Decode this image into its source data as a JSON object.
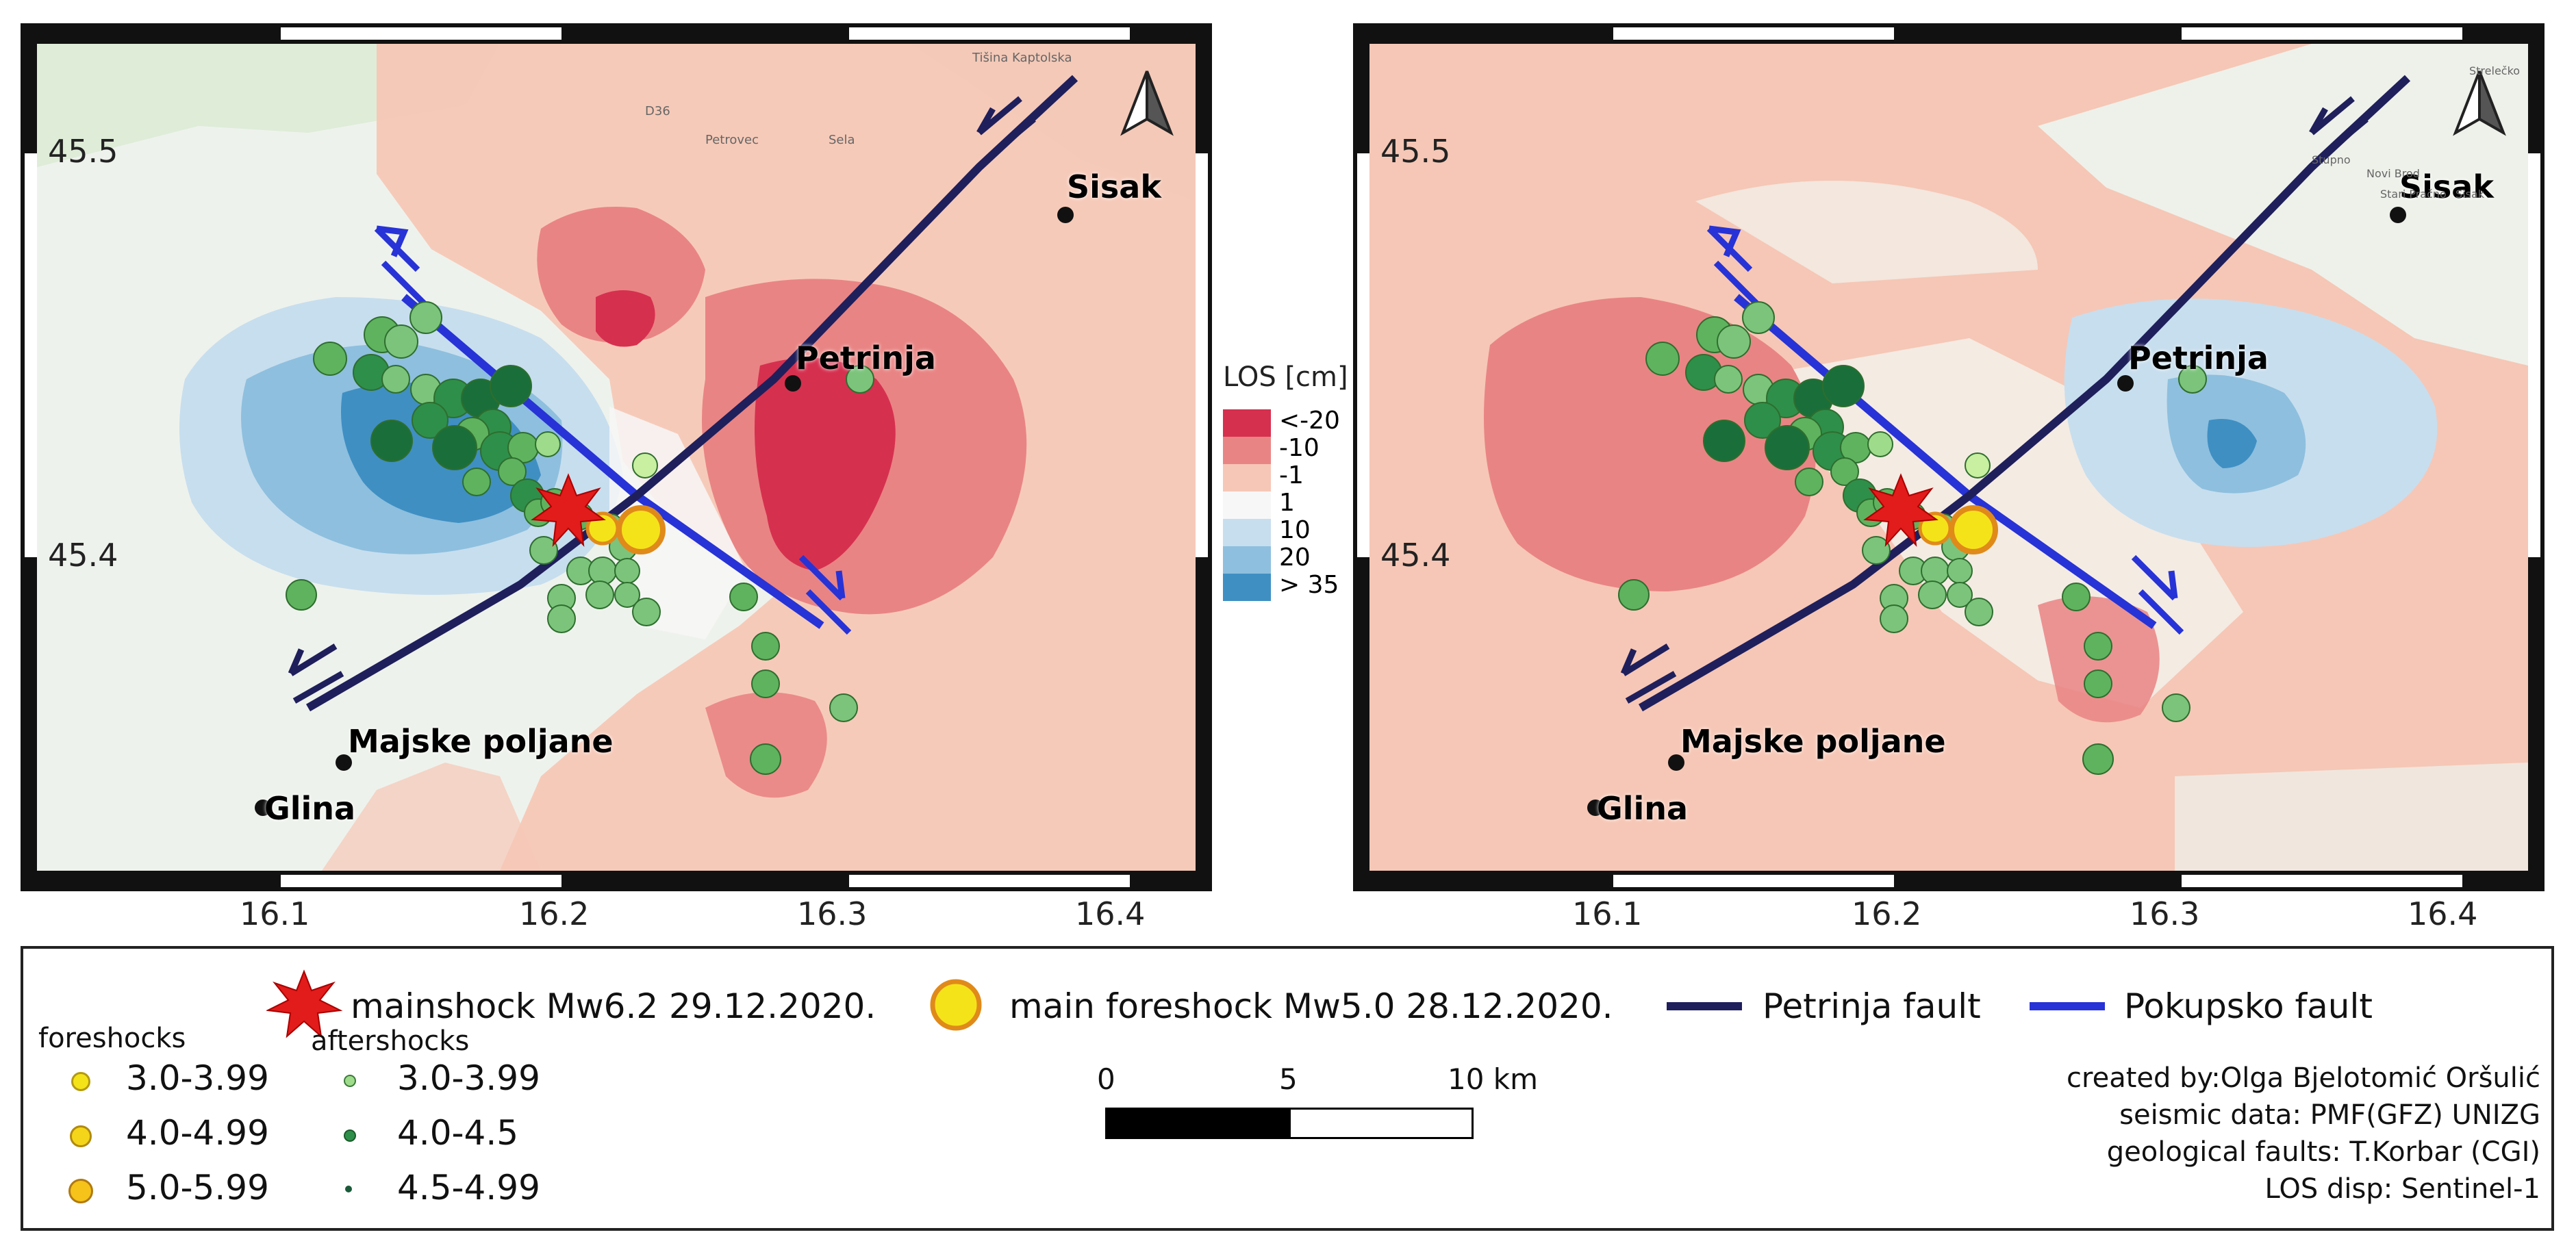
{
  "maps": [
    {
      "panel": "left",
      "lat_labels": [
        "45.5",
        "45.4"
      ],
      "lon_labels": [
        "16.1",
        "16.2",
        "16.3",
        "16.4"
      ],
      "places": [
        {
          "name": "Sisak"
        },
        {
          "name": "Petrinja"
        },
        {
          "name": "Majske poljane"
        },
        {
          "name": "Glina"
        }
      ],
      "basemap_labels": [
        "D36",
        "Petrovec",
        "Sela",
        "Tišina Kaptolska"
      ]
    },
    {
      "panel": "right",
      "lat_labels": [
        "45.5",
        "45.4"
      ],
      "lon_labels": [
        "16.1",
        "16.2",
        "16.3",
        "16.4"
      ],
      "places": [
        {
          "name": "Sisak"
        },
        {
          "name": "Petrinja"
        },
        {
          "name": "Majske poljane"
        },
        {
          "name": "Glina"
        }
      ],
      "basemap_labels": [
        "Strelečko",
        "Stupno",
        "Novi Brod",
        "Stari Pračno",
        "Sisak"
      ]
    }
  ],
  "los_legend": {
    "title": "LOS [cm]",
    "classes": [
      {
        "label": "<-20",
        "color": "#d6304f"
      },
      {
        "label": "-10",
        "color": "#e98484"
      },
      {
        "label": "-1",
        "color": "#f6c7b6"
      },
      {
        "label": "1",
        "color": "#f7f7f7"
      },
      {
        "label": "10",
        "color": "#c7deee"
      },
      {
        "label": "20",
        "color": "#8ebfde"
      },
      {
        "label": "> 35",
        "color": "#3f8fc3"
      }
    ]
  },
  "legend": {
    "mainshock": "mainshock Mw6.2 29.12.2020.",
    "main_foreshock": "main foreshock Mw5.0 28.12.2020.",
    "petrinja_fault": "Petrinja fault",
    "pokupsko_fault": "Pokupsko fault",
    "colors": {
      "petrinja": "#1f1f5c",
      "pokupsko": "#2733d6",
      "mainshock": "#e21b1b",
      "foreshock": "#f5e31a"
    },
    "foreshocks_title": "foreshocks",
    "aftershocks_title": "aftershocks",
    "foreshocks": [
      "3.0-3.99",
      "4.0-4.99",
      "5.0-5.99"
    ],
    "aftershocks": [
      "3.0-3.99",
      "4.0-4.5",
      "4.5-4.99"
    ],
    "scale": {
      "labels": [
        "0",
        "5",
        "10 km"
      ]
    },
    "credits": [
      "created by:Olga Bjelotomić Oršulić",
      "seismic data: PMF(GFZ) UNIZG",
      "geological faults: T.Korbar (CGI)",
      "LOS disp: Sentinel-1"
    ]
  }
}
